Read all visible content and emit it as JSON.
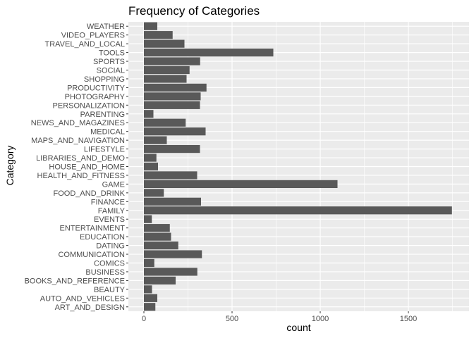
{
  "chart_data": {
    "type": "bar",
    "orientation": "horizontal",
    "title": "Frequency of Categories",
    "xlabel": "count",
    "ylabel": "Category",
    "xlim": [
      0,
      1750
    ],
    "xticks": [
      0,
      500,
      1000,
      1500
    ],
    "grid": true,
    "legend": "none",
    "colors": {
      "bar": "#595959",
      "panel": "#ebebeb",
      "grid": "#ffffff"
    },
    "categories": [
      "ART_AND_DESIGN",
      "AUTO_AND_VEHICLES",
      "BEAUTY",
      "BOOKS_AND_REFERENCE",
      "BUSINESS",
      "COMICS",
      "COMMUNICATION",
      "DATING",
      "EDUCATION",
      "ENTERTAINMENT",
      "EVENTS",
      "FAMILY",
      "FINANCE",
      "FOOD_AND_DRINK",
      "GAME",
      "HEALTH_AND_FITNESS",
      "HOUSE_AND_HOME",
      "LIBRARIES_AND_DEMO",
      "LIFESTYLE",
      "MAPS_AND_NAVIGATION",
      "MEDICAL",
      "NEWS_AND_MAGAZINES",
      "PARENTING",
      "PERSONALIZATION",
      "PHOTOGRAPHY",
      "PRODUCTIVITY",
      "SHOPPING",
      "SOCIAL",
      "SPORTS",
      "TOOLS",
      "TRAVEL_AND_LOCAL",
      "VIDEO_PLAYERS",
      "WEATHER"
    ],
    "values": [
      65,
      76,
      46,
      180,
      303,
      59,
      329,
      195,
      154,
      147,
      45,
      1747,
      324,
      113,
      1098,
      302,
      80,
      71,
      318,
      130,
      350,
      237,
      54,
      318,
      322,
      355,
      242,
      259,
      319,
      734,
      230,
      163,
      76
    ]
  }
}
